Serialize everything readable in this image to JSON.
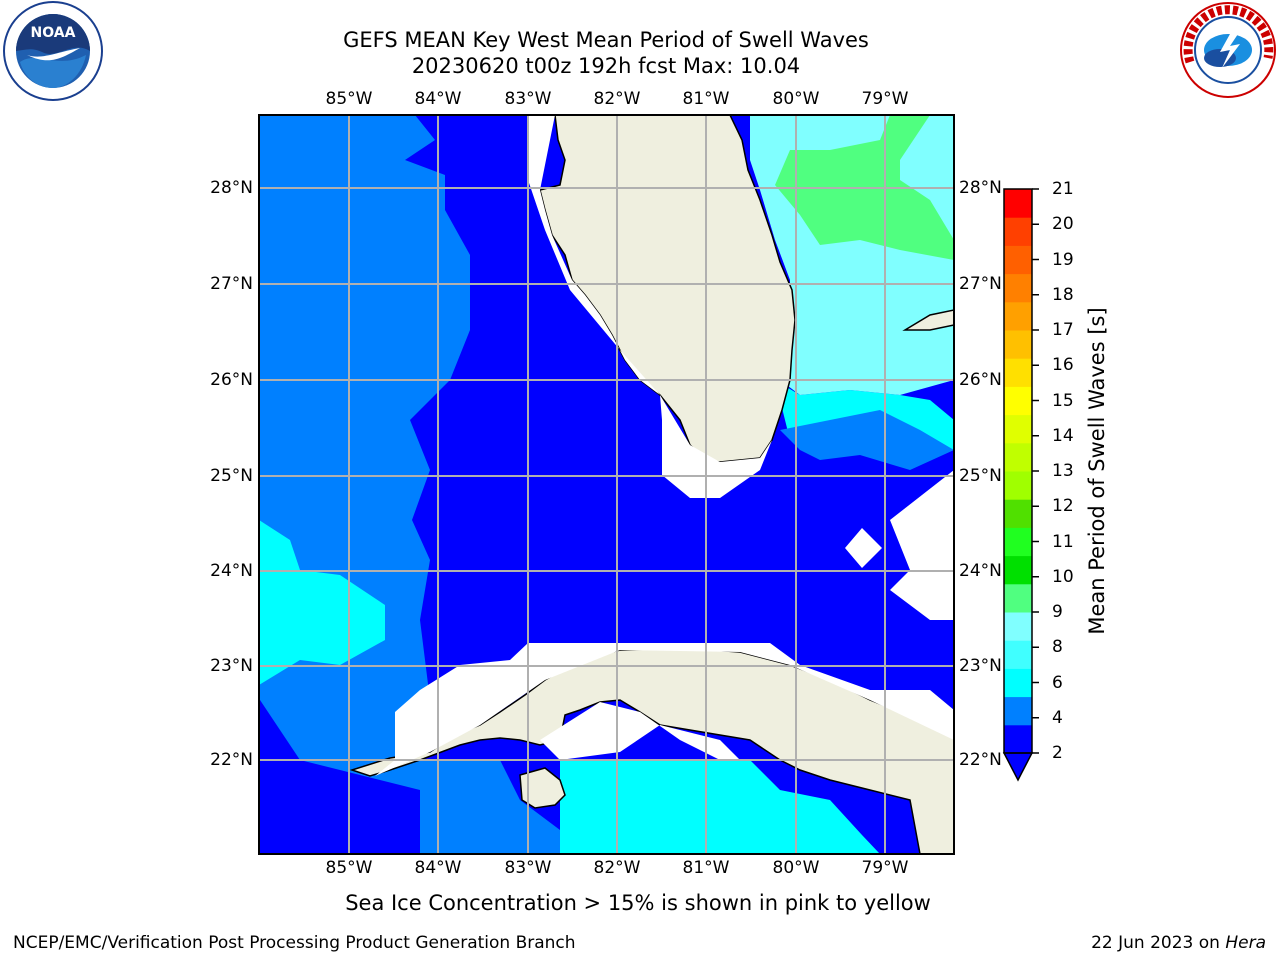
{
  "title": {
    "line1": "GEFS MEAN Key West Mean Period of Swell Waves",
    "line2": "20230620 t00z 192h fcst   Max: 10.04"
  },
  "longitudes": [
    "85°W",
    "84°W",
    "83°W",
    "82°W",
    "81°W",
    "80°W",
    "79°W"
  ],
  "latitudes": [
    "28°N",
    "27°N",
    "26°N",
    "25°N",
    "24°N",
    "23°N",
    "22°N"
  ],
  "colorbar": {
    "label": "Mean Period of Swell Waves [s]",
    "ticks": [
      "21",
      "20",
      "19",
      "18",
      "17",
      "16",
      "15",
      "14",
      "13",
      "12",
      "11",
      "10",
      "9",
      "8",
      "6",
      "4",
      "2"
    ],
    "colors": [
      "#0000ff",
      "#0080ff",
      "#00ffff",
      "#40ffff",
      "#80ffff",
      "#50ff80",
      "#00e000",
      "#20ff20",
      "#50e000",
      "#a0ff00",
      "#c0ff00",
      "#e0ff00",
      "#ffff00",
      "#ffe000",
      "#ffc000",
      "#ffa000",
      "#ff8000",
      "#ff6000",
      "#ff4000",
      "#ff0000"
    ]
  },
  "note": "Sea Ice Concentration > 15% is shown in pink to yellow",
  "footer": {
    "left": "NCEP/EMC/Verification Post Processing Product Generation Branch",
    "date": "22 Jun 2023 on ",
    "host": "Hera"
  },
  "logos": {
    "noaa": "NOAA",
    "nws": "NATIONAL WEATHER SERVICE"
  }
}
